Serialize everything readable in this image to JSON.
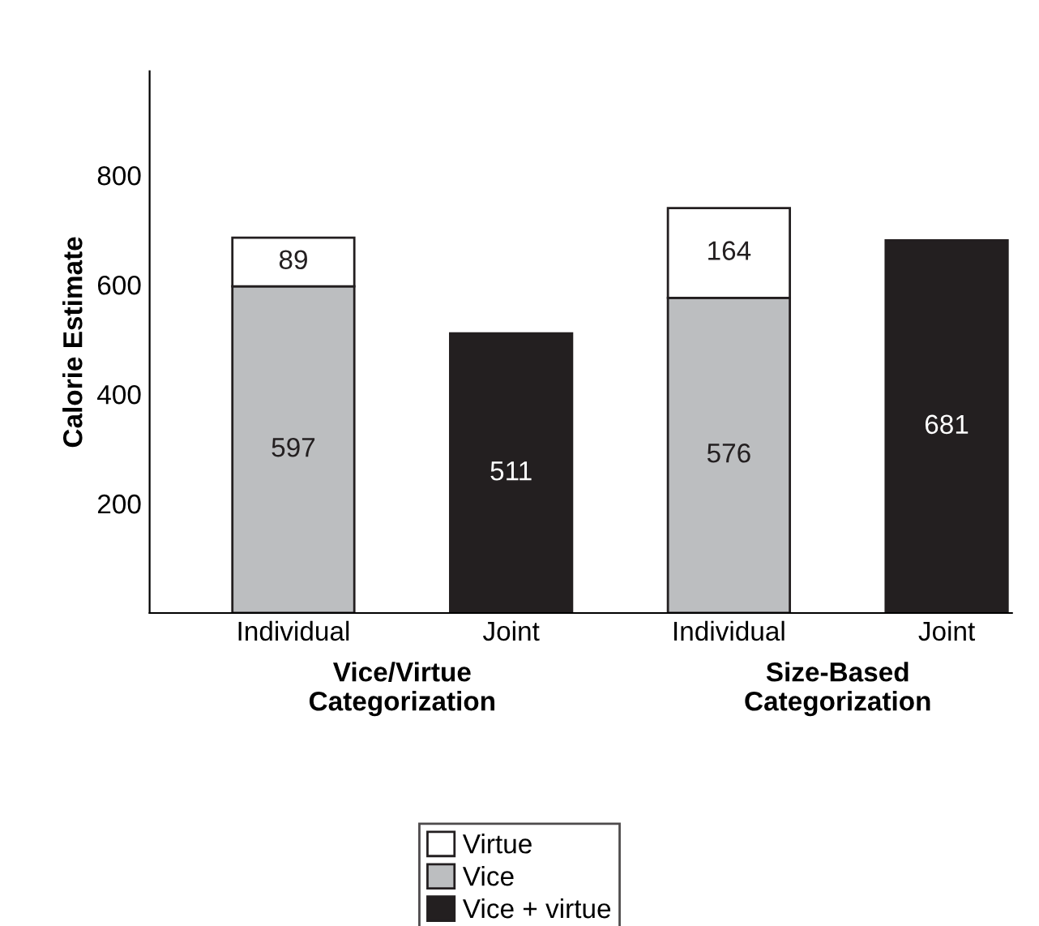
{
  "chart_data": {
    "type": "bar",
    "stacked": true,
    "ylabel": "Calorie Estimate",
    "categories": [
      "Individual",
      "Joint",
      "Individual",
      "Joint"
    ],
    "series": [
      {
        "name": "Vice",
        "color": "#bcbec0",
        "values": [
          597,
          null,
          576,
          null
        ]
      },
      {
        "name": "Virtue",
        "color": "#ffffff",
        "values": [
          89,
          null,
          164,
          null
        ]
      },
      {
        "name": "Vice + virtue",
        "color": "#231f20",
        "values": [
          null,
          511,
          null,
          681
        ]
      }
    ],
    "ylim": [
      0,
      990
    ],
    "yticks": [
      200,
      400,
      600,
      800
    ],
    "data_labels": true,
    "legend": "bottom",
    "grid": false,
    "annotations": [
      "Vice/Virtue\nCategorization",
      "Size-Based\nCategorization"
    ]
  }
}
